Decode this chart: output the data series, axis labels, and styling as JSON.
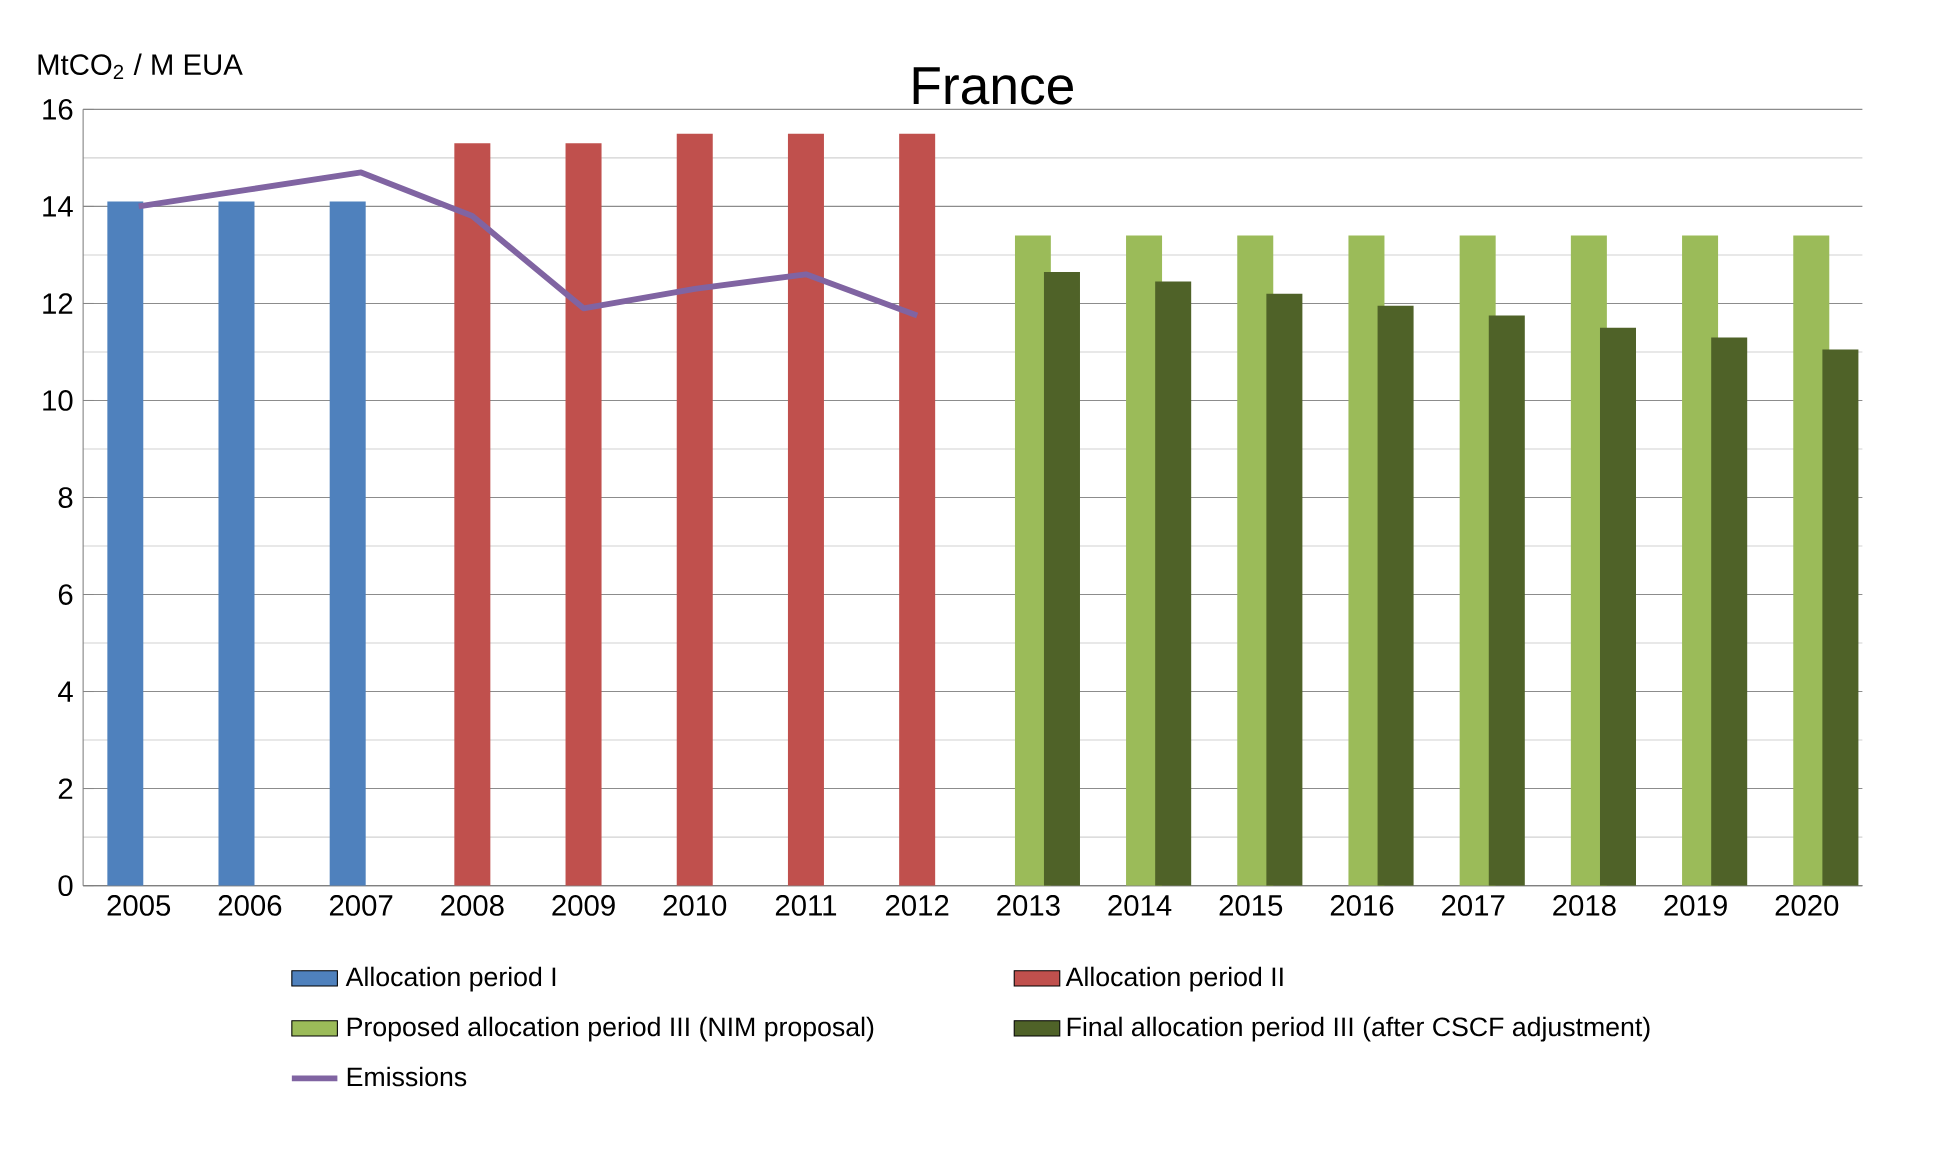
{
  "chart_data": {
    "type": "bar",
    "title": "France",
    "ylabel": "MtCO$_{2}$ / M EUA",
    "categories": [
      "2005",
      "2006",
      "2007",
      "2008",
      "2009",
      "2010",
      "2011",
      "2012",
      "2013",
      "2014",
      "2015",
      "2016",
      "2017",
      "2018",
      "2019",
      "2020"
    ],
    "series": [
      {
        "name": "Allocation period I",
        "color": "#4f81bd",
        "values": [
          14.1,
          14.1,
          14.1,
          null,
          null,
          null,
          null,
          null,
          null,
          null,
          null,
          null,
          null,
          null,
          null,
          null
        ]
      },
      {
        "name": "Allocation period II",
        "color": "#c0504d",
        "values": [
          null,
          null,
          null,
          15.3,
          15.3,
          15.5,
          15.5,
          15.5,
          null,
          null,
          null,
          null,
          null,
          null,
          null,
          null
        ]
      },
      {
        "name": "Proposed allocation period III (NIM proposal)",
        "color": "#9bbb59",
        "values": [
          null,
          null,
          null,
          null,
          null,
          null,
          null,
          null,
          13.4,
          13.4,
          13.4,
          13.4,
          13.4,
          13.4,
          13.4,
          13.4
        ]
      },
      {
        "name": "Final allocation period III (after CSCF adjustment)",
        "color": "#4f6228",
        "values": [
          null,
          null,
          null,
          null,
          null,
          null,
          null,
          null,
          12.65,
          12.45,
          12.2,
          11.95,
          11.75,
          11.5,
          11.3,
          11.05
        ]
      },
      {
        "name": "Emissions",
        "type": "line",
        "color": "#8064a2",
        "values": [
          14.0,
          14.35,
          14.7,
          13.8,
          11.9,
          12.3,
          12.6,
          11.75,
          null,
          null,
          null,
          null,
          null,
          null,
          null,
          null
        ]
      }
    ],
    "ylim": [
      0,
      16
    ],
    "yticks": [
      0,
      2,
      4,
      6,
      8,
      10,
      12,
      14,
      16
    ],
    "grid": "y",
    "legend": "bottom"
  }
}
